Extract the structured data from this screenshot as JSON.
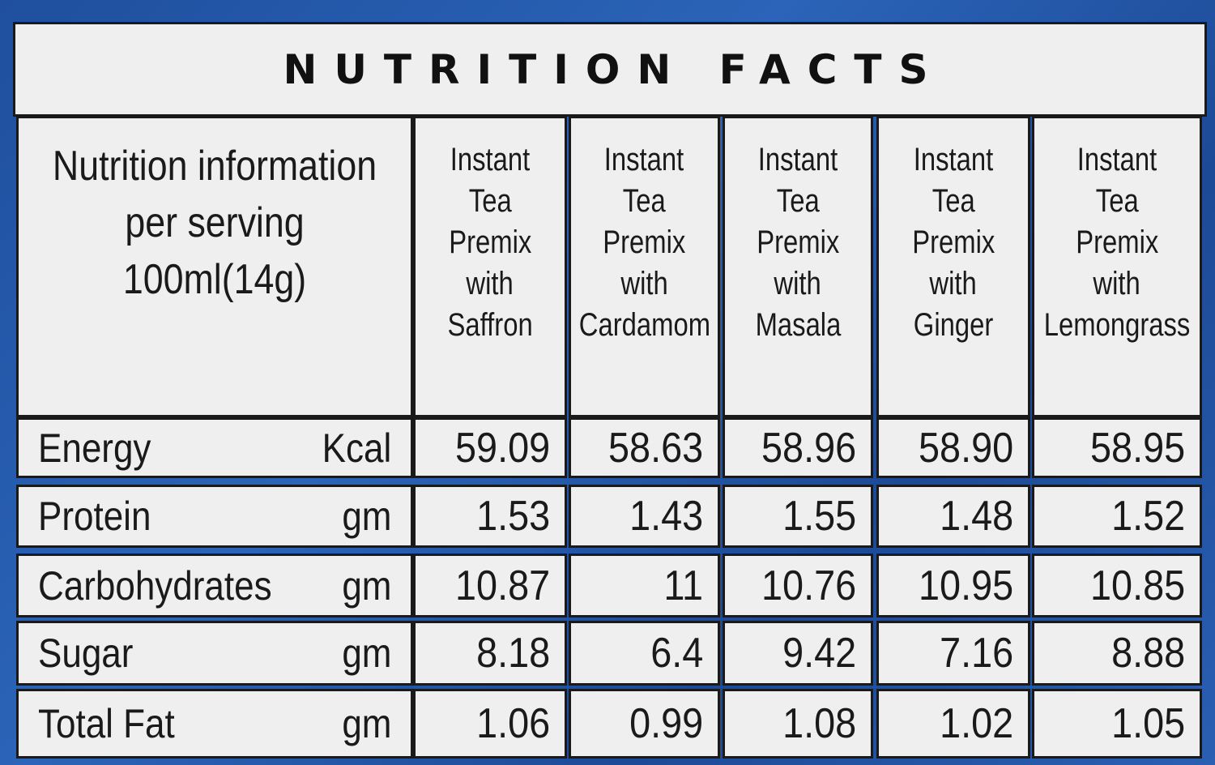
{
  "title": "NUTRITION FACTS",
  "header": {
    "label_lines": [
      "Nutrition information",
      "per serving",
      "100ml(14g)"
    ],
    "products": [
      {
        "lines": [
          "Instant",
          "Tea",
          "Premix",
          "with",
          "Saffron"
        ]
      },
      {
        "lines": [
          "Instant",
          "Tea",
          "Premix",
          "with",
          "Cardamom"
        ]
      },
      {
        "lines": [
          "Instant",
          "Tea",
          "Premix",
          "with",
          "Masala"
        ]
      },
      {
        "lines": [
          "Instant",
          "Tea",
          "Premix",
          "with",
          "Ginger"
        ]
      },
      {
        "lines": [
          "Instant",
          "Tea",
          "Premix",
          "with",
          "Lemongrass"
        ]
      }
    ]
  },
  "rows": [
    {
      "name": "Energy",
      "unit": "Kcal",
      "values": [
        "59.09",
        "58.63",
        "58.96",
        "58.90",
        "58.95"
      ]
    },
    {
      "name": "Protein",
      "unit": "gm",
      "values": [
        "1.53",
        "1.43",
        "1.55",
        "1.48",
        "1.52"
      ]
    },
    {
      "name": "Carbohydrates",
      "unit": "gm",
      "values": [
        "10.87",
        "11",
        "10.76",
        "10.95",
        "10.85"
      ]
    },
    {
      "name": "Sugar",
      "unit": "gm",
      "values": [
        "8.18",
        "6.4",
        "9.42",
        "7.16",
        "8.88"
      ]
    },
    {
      "name": "Total Fat",
      "unit": "gm",
      "values": [
        "1.06",
        "0.99",
        "1.08",
        "1.02",
        "1.05"
      ]
    }
  ]
}
